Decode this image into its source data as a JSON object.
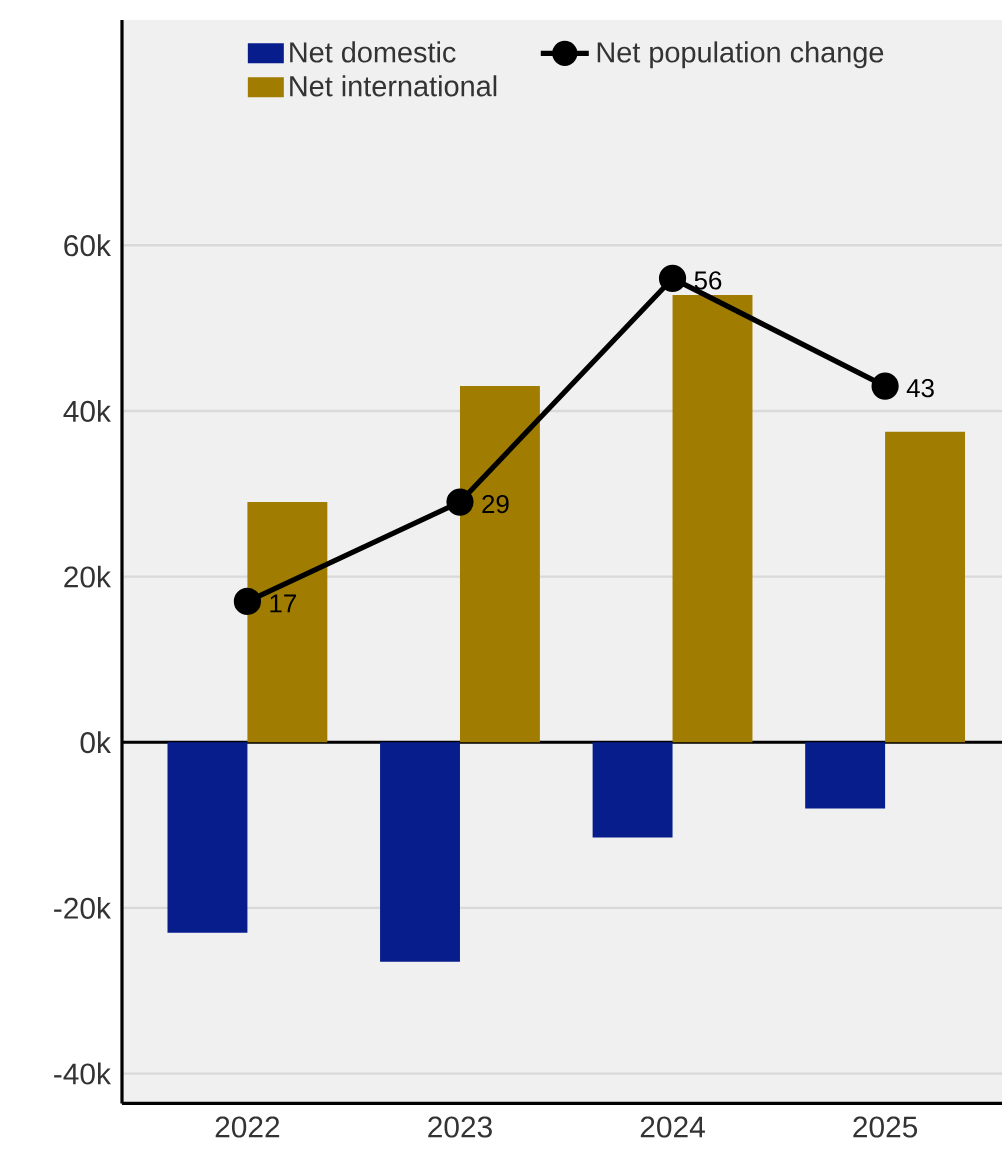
{
  "chart_data": {
    "type": "bar",
    "categories": [
      "2022",
      "2023",
      "2024",
      "2025"
    ],
    "series": [
      {
        "name": "Net domestic",
        "color": "#071d8c",
        "values": [
          -23,
          -26.5,
          -11.5,
          -8
        ]
      },
      {
        "name": "Net international",
        "color": "#a07d00",
        "values": [
          29,
          43,
          54,
          37.5
        ]
      },
      {
        "name": "Net population change",
        "type": "line",
        "color": "#000000",
        "marker": "circle",
        "line_style": "solid",
        "data_labels": true,
        "values": [
          17,
          29,
          56,
          43
        ]
      }
    ],
    "ylim": [
      -43.6,
      87.2
    ],
    "yticks": [
      {
        "value": -40,
        "label": "-40k"
      },
      {
        "value": -20,
        "label": "-20k"
      },
      {
        "value": 0,
        "label": "0k"
      },
      {
        "value": 20,
        "label": "20k"
      },
      {
        "value": 40,
        "label": "40k"
      },
      {
        "value": 60,
        "label": "60k"
      }
    ],
    "grid": "y",
    "legend": "top"
  }
}
